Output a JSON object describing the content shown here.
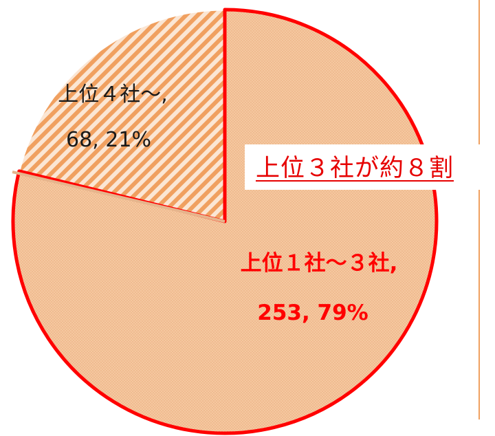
{
  "chart_data": {
    "type": "pie",
    "title": "",
    "slices": [
      {
        "label": "上位１社～３社",
        "value": 253,
        "percent": 79,
        "highlighted": true,
        "pattern": "dotted",
        "color": "#f5c8a0"
      },
      {
        "label": "上位４社～",
        "value": 68,
        "percent": 21,
        "highlighted": false,
        "pattern": "diagonal-stripes",
        "color": "#f0a060"
      }
    ],
    "labels": {
      "top3_line1": "上位１社～３社,",
      "top3_line2": "253, 79%",
      "rest_line1": "上位４社～,",
      "rest_line2": "68, 21%"
    },
    "annotation": "上位３社が約８割",
    "colors": {
      "highlight_outline": "#ff0000",
      "slice_fill": "#f5c8a0",
      "stripe": "#f0a060",
      "annotation_text": "#e60000"
    }
  }
}
